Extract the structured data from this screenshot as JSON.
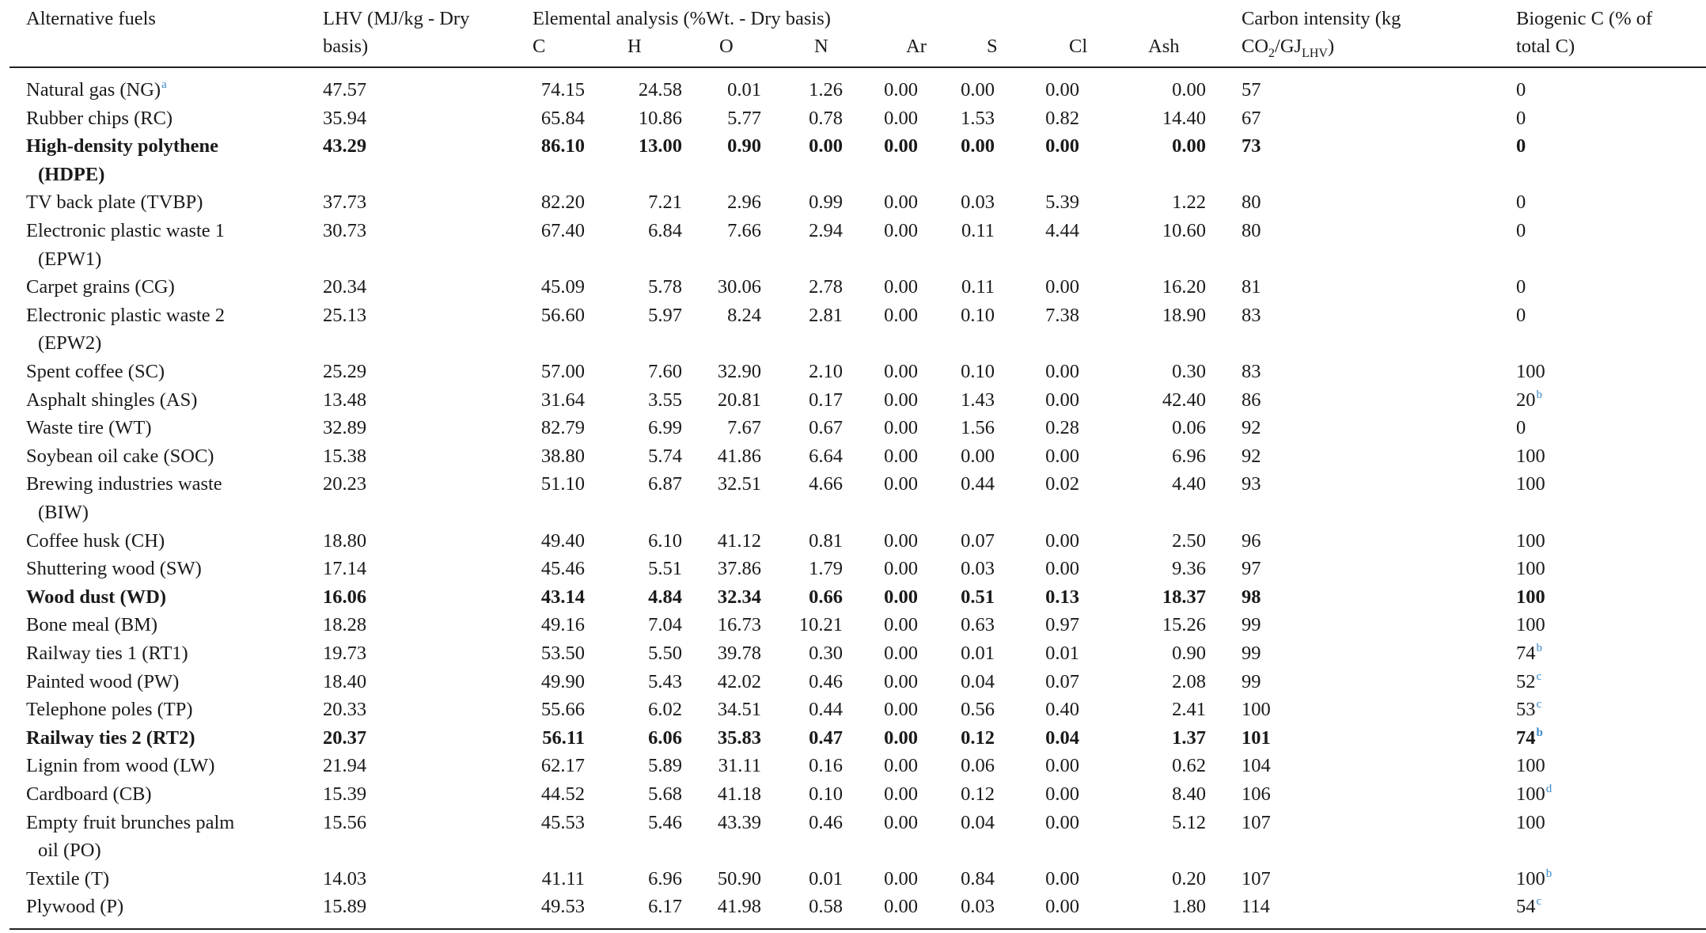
{
  "header": {
    "fuel": "Alternative fuels",
    "lhv_line1": "LHV (MJ/kg - Dry",
    "lhv_line2": "basis)",
    "elemental": "Elemental analysis (%Wt. - Dry basis)",
    "cols": [
      "C",
      "H",
      "O",
      "N",
      "Ar",
      "S",
      "Cl",
      "Ash"
    ],
    "ci_line1": "Carbon intensity (kg",
    "ci_line2_pre": "CO",
    "ci_line2_sub1": "2",
    "ci_line2_mid": "/GJ",
    "ci_line2_sub2": "LHV",
    "ci_line2_post": ")",
    "bio_line1": "Biogenic C (% of",
    "bio_line2": "total C)"
  },
  "rows": [
    {
      "name": [
        "Natural gas (NG)"
      ],
      "sup": "a",
      "lhv": "47.57",
      "vals": [
        "74.15",
        "24.58",
        "0.01",
        "1.26",
        "0.00",
        "0.00",
        "0.00",
        "0.00"
      ],
      "ci": "57",
      "bio": "0",
      "bold": false
    },
    {
      "name": [
        "Rubber chips (RC)"
      ],
      "lhv": "35.94",
      "vals": [
        "65.84",
        "10.86",
        "5.77",
        "0.78",
        "0.00",
        "1.53",
        "0.82",
        "14.40"
      ],
      "ci": "67",
      "bio": "0",
      "bold": false
    },
    {
      "name": [
        "High-density polythene",
        "(HDPE)"
      ],
      "lhv": "43.29",
      "vals": [
        "86.10",
        "13.00",
        "0.90",
        "0.00",
        "0.00",
        "0.00",
        "0.00",
        "0.00"
      ],
      "ci": "73",
      "bio": "0",
      "bold": true
    },
    {
      "name": [
        "TV back plate (TVBP)"
      ],
      "lhv": "37.73",
      "vals": [
        "82.20",
        "7.21",
        "2.96",
        "0.99",
        "0.00",
        "0.03",
        "5.39",
        "1.22"
      ],
      "ci": "80",
      "bio": "0",
      "bold": false
    },
    {
      "name": [
        "Electronic plastic waste 1",
        "(EPW1)"
      ],
      "lhv": "30.73",
      "vals": [
        "67.40",
        "6.84",
        "7.66",
        "2.94",
        "0.00",
        "0.11",
        "4.44",
        "10.60"
      ],
      "ci": "80",
      "bio": "0",
      "bold": false
    },
    {
      "name": [
        "Carpet grains (CG)"
      ],
      "lhv": "20.34",
      "vals": [
        "45.09",
        "5.78",
        "30.06",
        "2.78",
        "0.00",
        "0.11",
        "0.00",
        "16.20"
      ],
      "ci": "81",
      "bio": "0",
      "bold": false
    },
    {
      "name": [
        "Electronic plastic waste 2",
        "(EPW2)"
      ],
      "lhv": "25.13",
      "vals": [
        "56.60",
        "5.97",
        "8.24",
        "2.81",
        "0.00",
        "0.10",
        "7.38",
        "18.90"
      ],
      "ci": "83",
      "bio": "0",
      "bold": false
    },
    {
      "name": [
        "Spent coffee (SC)"
      ],
      "lhv": "25.29",
      "vals": [
        "57.00",
        "7.60",
        "32.90",
        "2.10",
        "0.00",
        "0.10",
        "0.00",
        "0.30"
      ],
      "ci": "83",
      "bio": "100",
      "bold": false
    },
    {
      "name": [
        "Asphalt shingles (AS)"
      ],
      "lhv": "13.48",
      "vals": [
        "31.64",
        "3.55",
        "20.81",
        "0.17",
        "0.00",
        "1.43",
        "0.00",
        "42.40"
      ],
      "ci": "86",
      "bio": "20",
      "bio_sup": "b",
      "bold": false
    },
    {
      "name": [
        "Waste tire (WT)"
      ],
      "lhv": "32.89",
      "vals": [
        "82.79",
        "6.99",
        "7.67",
        "0.67",
        "0.00",
        "1.56",
        "0.28",
        "0.06"
      ],
      "ci": "92",
      "bio": "0",
      "bold": false
    },
    {
      "name": [
        "Soybean oil cake (SOC)"
      ],
      "lhv": "15.38",
      "vals": [
        "38.80",
        "5.74",
        "41.86",
        "6.64",
        "0.00",
        "0.00",
        "0.00",
        "6.96"
      ],
      "ci": "92",
      "bio": "100",
      "bold": false
    },
    {
      "name": [
        "Brewing industries waste",
        "(BIW)"
      ],
      "lhv": "20.23",
      "vals": [
        "51.10",
        "6.87",
        "32.51",
        "4.66",
        "0.00",
        "0.44",
        "0.02",
        "4.40"
      ],
      "ci": "93",
      "bio": "100",
      "bold": false
    },
    {
      "name": [
        "Coffee husk (CH)"
      ],
      "lhv": "18.80",
      "vals": [
        "49.40",
        "6.10",
        "41.12",
        "0.81",
        "0.00",
        "0.07",
        "0.00",
        "2.50"
      ],
      "ci": "96",
      "bio": "100",
      "bold": false
    },
    {
      "name": [
        "Shuttering wood (SW)"
      ],
      "lhv": "17.14",
      "vals": [
        "45.46",
        "5.51",
        "37.86",
        "1.79",
        "0.00",
        "0.03",
        "0.00",
        "9.36"
      ],
      "ci": "97",
      "bio": "100",
      "bold": false
    },
    {
      "name": [
        "Wood dust (WD)"
      ],
      "lhv": "16.06",
      "vals": [
        "43.14",
        "4.84",
        "32.34",
        "0.66",
        "0.00",
        "0.51",
        "0.13",
        "18.37"
      ],
      "ci": "98",
      "bio": "100",
      "bold": true
    },
    {
      "name": [
        "Bone meal (BM)"
      ],
      "lhv": "18.28",
      "vals": [
        "49.16",
        "7.04",
        "16.73",
        "10.21",
        "0.00",
        "0.63",
        "0.97",
        "15.26"
      ],
      "ci": "99",
      "bio": "100",
      "bold": false
    },
    {
      "name": [
        "Railway ties 1 (RT1)"
      ],
      "lhv": "19.73",
      "vals": [
        "53.50",
        "5.50",
        "39.78",
        "0.30",
        "0.00",
        "0.01",
        "0.01",
        "0.90"
      ],
      "ci": "99",
      "bio": "74",
      "bio_sup": "b",
      "bold": false
    },
    {
      "name": [
        "Painted wood (PW)"
      ],
      "lhv": "18.40",
      "vals": [
        "49.90",
        "5.43",
        "42.02",
        "0.46",
        "0.00",
        "0.04",
        "0.07",
        "2.08"
      ],
      "ci": "99",
      "bio": "52",
      "bio_sup": "c",
      "bold": false
    },
    {
      "name": [
        "Telephone poles (TP)"
      ],
      "lhv": "20.33",
      "vals": [
        "55.66",
        "6.02",
        "34.51",
        "0.44",
        "0.00",
        "0.56",
        "0.40",
        "2.41"
      ],
      "ci": "100",
      "bio": "53",
      "bio_sup": "c",
      "bold": false
    },
    {
      "name": [
        "Railway ties 2 (RT2)"
      ],
      "lhv": "20.37",
      "vals": [
        "56.11",
        "6.06",
        "35.83",
        "0.47",
        "0.00",
        "0.12",
        "0.04",
        "1.37"
      ],
      "ci": "101",
      "bio": "74",
      "bio_sup": "b",
      "bold": true
    },
    {
      "name": [
        "Lignin from wood (LW)"
      ],
      "lhv": "21.94",
      "vals": [
        "62.17",
        "5.89",
        "31.11",
        "0.16",
        "0.00",
        "0.06",
        "0.00",
        "0.62"
      ],
      "ci": "104",
      "bio": "100",
      "bold": false
    },
    {
      "name": [
        "Cardboard (CB)"
      ],
      "lhv": "15.39",
      "vals": [
        "44.52",
        "5.68",
        "41.18",
        "0.10",
        "0.00",
        "0.12",
        "0.00",
        "8.40"
      ],
      "ci": "106",
      "bio": "100",
      "bio_sup": "d",
      "bold": false
    },
    {
      "name": [
        "Empty fruit brunches palm",
        "oil (PO)"
      ],
      "lhv": "15.56",
      "vals": [
        "45.53",
        "5.46",
        "43.39",
        "0.46",
        "0.00",
        "0.04",
        "0.00",
        "5.12"
      ],
      "ci": "107",
      "bio": "100",
      "bold": false
    },
    {
      "name": [
        "Textile (T)"
      ],
      "lhv": "14.03",
      "vals": [
        "41.11",
        "6.96",
        "50.90",
        "0.01",
        "0.00",
        "0.84",
        "0.00",
        "0.20"
      ],
      "ci": "107",
      "bio": "100",
      "bio_sup": "b",
      "bold": false
    },
    {
      "name": [
        "Plywood (P)"
      ],
      "lhv": "15.89",
      "vals": [
        "49.53",
        "6.17",
        "41.98",
        "0.58",
        "0.00",
        "0.03",
        "0.00",
        "1.80"
      ],
      "ci": "114",
      "bio": "54",
      "bio_sup": "c",
      "bold": false
    }
  ]
}
